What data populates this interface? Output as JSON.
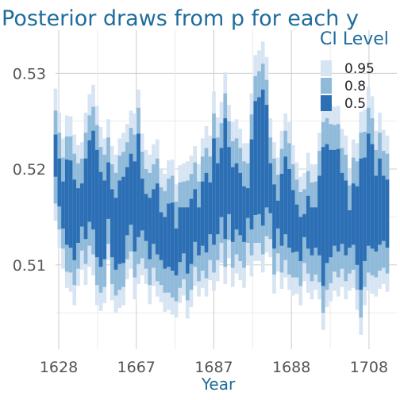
{
  "colors": {
    "title": "#1f6d9c",
    "ci95": "#d6e4f3",
    "ci80": "#8fbad9",
    "ci50": "#2c6fb5",
    "grid_major": "#cccccc",
    "grid_minor": "#ebebeb",
    "axis_text": "#555555"
  },
  "chart_data": {
    "type": "interval",
    "title": "Posterior draws from p for each y",
    "xlabel": "Year",
    "ylabel": "",
    "x_tick_labels": [
      "1628",
      "1667",
      "1687",
      "1688",
      "1708"
    ],
    "y_ticks": [
      0.51,
      0.52,
      0.53
    ],
    "y_tick_labels": [
      "0.51",
      "0.52",
      "0.53"
    ],
    "ylim": [
      0.5012,
      0.5345
    ],
    "grid": true,
    "legend": {
      "title": "CI Level",
      "position": "top-right",
      "entries": [
        "0.95",
        "0.8",
        "0.5"
      ]
    },
    "series": [
      {
        "name": "0.95",
        "low": [
          0.5146,
          0.5118,
          0.5096,
          0.5076,
          0.5072,
          0.5058,
          0.5078,
          0.5095,
          0.5079,
          0.5098,
          0.5089,
          0.5058,
          0.5052,
          0.506,
          0.5105,
          0.5063,
          0.505,
          0.5055,
          0.5058,
          0.5085,
          0.5096,
          0.5064,
          0.508,
          0.5089,
          0.508,
          0.5059,
          0.5078,
          0.5067,
          0.5061,
          0.5051,
          0.5053,
          0.5048,
          0.5045,
          0.506,
          0.5068,
          0.5044,
          0.5056,
          0.5078,
          0.5067,
          0.5076,
          0.5067,
          0.5084,
          0.5073,
          0.5083,
          0.5102,
          0.508,
          0.5107,
          0.5077,
          0.5091,
          0.5084,
          0.5076,
          0.5101,
          0.5088,
          0.5104,
          0.5104,
          0.5092,
          0.5113,
          0.5108,
          0.507,
          0.5093,
          0.5075,
          0.5087,
          0.5074,
          0.5068,
          0.507,
          0.5058,
          0.5083,
          0.5071,
          0.5064,
          0.5074,
          0.5064,
          0.5032,
          0.5056,
          0.5062,
          0.5073,
          0.5067,
          0.5077,
          0.5064,
          0.5073,
          0.5076,
          0.5053,
          0.5027,
          0.5058,
          0.5073,
          0.507,
          0.5067,
          0.5075,
          0.508,
          0.5072
        ],
        "high": [
          0.5284,
          0.5259,
          0.5232,
          0.5256,
          0.5255,
          0.5236,
          0.5225,
          0.5228,
          0.5259,
          0.5278,
          0.5288,
          0.5266,
          0.5244,
          0.5232,
          0.5252,
          0.5224,
          0.5215,
          0.5232,
          0.5238,
          0.5247,
          0.5261,
          0.5258,
          0.5283,
          0.5237,
          0.522,
          0.5215,
          0.5226,
          0.5231,
          0.52,
          0.5195,
          0.5209,
          0.521,
          0.5184,
          0.5204,
          0.5206,
          0.5208,
          0.5214,
          0.5224,
          0.5205,
          0.5232,
          0.5245,
          0.5235,
          0.5281,
          0.5254,
          0.527,
          0.5301,
          0.5267,
          0.5249,
          0.5252,
          0.5242,
          0.5227,
          0.5227,
          0.5279,
          0.5319,
          0.5324,
          0.5333,
          0.5317,
          0.5253,
          0.5228,
          0.5212,
          0.524,
          0.5258,
          0.5249,
          0.5225,
          0.5207,
          0.5192,
          0.5196,
          0.5217,
          0.5205,
          0.5205,
          0.5238,
          0.5272,
          0.5273,
          0.5266,
          0.5265,
          0.5266,
          0.5242,
          0.5235,
          0.5201,
          0.5231,
          0.5227,
          0.526,
          0.5262,
          0.5286,
          0.5276,
          0.524,
          0.5259,
          0.5241,
          0.5235
        ]
      },
      {
        "name": "0.8",
        "low": [
          0.5164,
          0.5137,
          0.5117,
          0.5093,
          0.5092,
          0.5079,
          0.5096,
          0.5115,
          0.5101,
          0.512,
          0.5111,
          0.5079,
          0.5071,
          0.5077,
          0.5122,
          0.508,
          0.5068,
          0.5074,
          0.5077,
          0.5106,
          0.5114,
          0.5087,
          0.5101,
          0.5107,
          0.5096,
          0.5079,
          0.5097,
          0.5083,
          0.5079,
          0.5071,
          0.5071,
          0.5066,
          0.5062,
          0.5076,
          0.5085,
          0.5063,
          0.5074,
          0.5098,
          0.5083,
          0.5094,
          0.5086,
          0.5105,
          0.5092,
          0.5105,
          0.5123,
          0.5098,
          0.5126,
          0.5097,
          0.5111,
          0.5104,
          0.5097,
          0.5123,
          0.511,
          0.5123,
          0.5123,
          0.5111,
          0.513,
          0.5127,
          0.509,
          0.5112,
          0.5092,
          0.5105,
          0.509,
          0.5087,
          0.5087,
          0.5078,
          0.5102,
          0.5091,
          0.5083,
          0.509,
          0.5082,
          0.505,
          0.5074,
          0.5081,
          0.5093,
          0.5087,
          0.5096,
          0.5083,
          0.5091,
          0.5095,
          0.5074,
          0.5045,
          0.5077,
          0.5092,
          0.5089,
          0.5087,
          0.5094,
          0.5097,
          0.5091
        ],
        "high": [
          0.5261,
          0.5238,
          0.5212,
          0.5234,
          0.5234,
          0.5216,
          0.5206,
          0.5211,
          0.5238,
          0.5256,
          0.5265,
          0.5246,
          0.5223,
          0.5215,
          0.5233,
          0.5205,
          0.5196,
          0.5214,
          0.5218,
          0.5228,
          0.5243,
          0.5236,
          0.5264,
          0.5218,
          0.52,
          0.5196,
          0.5205,
          0.5211,
          0.5181,
          0.5177,
          0.519,
          0.5193,
          0.5166,
          0.5186,
          0.5187,
          0.5188,
          0.5195,
          0.5207,
          0.5187,
          0.5213,
          0.5222,
          0.5213,
          0.5258,
          0.5233,
          0.5248,
          0.5279,
          0.525,
          0.5229,
          0.5232,
          0.5222,
          0.5208,
          0.5206,
          0.5257,
          0.5297,
          0.5302,
          0.531,
          0.5293,
          0.5233,
          0.5211,
          0.5194,
          0.5221,
          0.524,
          0.5227,
          0.5205,
          0.5189,
          0.5176,
          0.5179,
          0.5198,
          0.5186,
          0.5187,
          0.5219,
          0.5249,
          0.5253,
          0.5247,
          0.5246,
          0.5247,
          0.5222,
          0.5215,
          0.5183,
          0.5212,
          0.5208,
          0.5238,
          0.5239,
          0.5264,
          0.5253,
          0.522,
          0.5238,
          0.5219,
          0.5216
        ]
      },
      {
        "name": "0.5",
        "low": [
          0.5192,
          0.5161,
          0.5138,
          0.5121,
          0.5118,
          0.5105,
          0.5123,
          0.514,
          0.5127,
          0.5145,
          0.5137,
          0.5108,
          0.5098,
          0.5106,
          0.5148,
          0.5108,
          0.5095,
          0.5101,
          0.5102,
          0.5131,
          0.5142,
          0.5114,
          0.5129,
          0.5136,
          0.5125,
          0.5106,
          0.5122,
          0.5111,
          0.5105,
          0.5096,
          0.5098,
          0.5094,
          0.5089,
          0.5103,
          0.5112,
          0.5091,
          0.5101,
          0.5124,
          0.511,
          0.512,
          0.5113,
          0.5132,
          0.5121,
          0.5132,
          0.515,
          0.5127,
          0.5153,
          0.5124,
          0.5137,
          0.5131,
          0.5124,
          0.5149,
          0.5137,
          0.5152,
          0.5153,
          0.5141,
          0.516,
          0.5154,
          0.5117,
          0.5138,
          0.512,
          0.5132,
          0.5118,
          0.5113,
          0.5114,
          0.5104,
          0.5129,
          0.5117,
          0.511,
          0.5118,
          0.511,
          0.5078,
          0.5102,
          0.5108,
          0.512,
          0.5114,
          0.5122,
          0.511,
          0.5118,
          0.5121,
          0.51,
          0.5074,
          0.5104,
          0.512,
          0.5117,
          0.5114,
          0.5121,
          0.5125,
          0.5118
        ],
        "high": [
          0.5236,
          0.5211,
          0.5187,
          0.521,
          0.5209,
          0.5189,
          0.518,
          0.5185,
          0.5211,
          0.523,
          0.524,
          0.522,
          0.5197,
          0.5188,
          0.5207,
          0.5179,
          0.517,
          0.5188,
          0.5192,
          0.5202,
          0.5216,
          0.5208,
          0.5237,
          0.519,
          0.5174,
          0.517,
          0.5179,
          0.5185,
          0.5155,
          0.515,
          0.5164,
          0.5165,
          0.5138,
          0.516,
          0.516,
          0.516,
          0.5169,
          0.5179,
          0.516,
          0.5187,
          0.5196,
          0.5186,
          0.5232,
          0.5206,
          0.5222,
          0.5253,
          0.5223,
          0.5202,
          0.5206,
          0.5196,
          0.5182,
          0.518,
          0.5231,
          0.5271,
          0.5275,
          0.5283,
          0.5267,
          0.5206,
          0.5184,
          0.5167,
          0.5195,
          0.5213,
          0.52,
          0.5178,
          0.5163,
          0.515,
          0.5153,
          0.5172,
          0.516,
          0.516,
          0.5193,
          0.5223,
          0.5226,
          0.522,
          0.522,
          0.5221,
          0.5196,
          0.5188,
          0.5157,
          0.5185,
          0.5182,
          0.5211,
          0.5212,
          0.5237,
          0.5226,
          0.5193,
          0.5211,
          0.5193,
          0.5189
        ]
      }
    ]
  }
}
